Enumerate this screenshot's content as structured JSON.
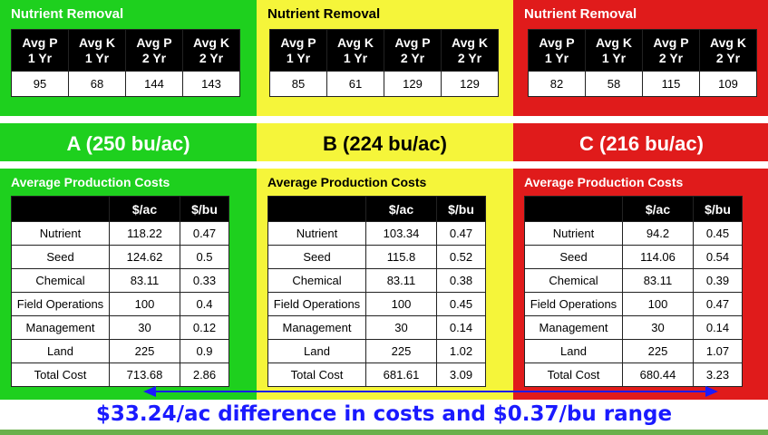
{
  "columns": [
    {
      "key": "a",
      "color": "#1ed01e",
      "nutrient_title": "Nutrient Removal",
      "nutrient_headers": [
        [
          "Avg P",
          "1 Yr"
        ],
        [
          "Avg K",
          "1 Yr"
        ],
        [
          "Avg P",
          "2 Yr"
        ],
        [
          "Avg K",
          "2 Yr"
        ]
      ],
      "nutrient_values": [
        "95",
        "68",
        "144",
        "143"
      ],
      "label": "A (250 bu/ac)",
      "cost_title": "Average Production Costs",
      "cost_headers": [
        "",
        "$/ac",
        "$/bu"
      ],
      "rows": [
        [
          "Nutrient",
          "118.22",
          "0.47"
        ],
        [
          "Seed",
          "124.62",
          "0.5"
        ],
        [
          "Chemical",
          "83.11",
          "0.33"
        ],
        [
          "Field Operations",
          "100",
          "0.4"
        ],
        [
          "Management",
          "30",
          "0.12"
        ],
        [
          "Land",
          "225",
          "0.9"
        ],
        [
          "Total Cost",
          "713.68",
          "2.86"
        ]
      ]
    },
    {
      "key": "b",
      "color": "#f5f53a",
      "nutrient_title": "Nutrient Removal",
      "nutrient_headers": [
        [
          "Avg P",
          "1 Yr"
        ],
        [
          "Avg K",
          "1 Yr"
        ],
        [
          "Avg P",
          "2 Yr"
        ],
        [
          "Avg K",
          "2 Yr"
        ]
      ],
      "nutrient_values": [
        "85",
        "61",
        "129",
        "129"
      ],
      "label": "B (224 bu/ac)",
      "cost_title": "Average Production Costs",
      "cost_headers": [
        "",
        "$/ac",
        "$/bu"
      ],
      "rows": [
        [
          "Nutrient",
          "103.34",
          "0.47"
        ],
        [
          "Seed",
          "115.8",
          "0.52"
        ],
        [
          "Chemical",
          "83.11",
          "0.38"
        ],
        [
          "Field Operations",
          "100",
          "0.45"
        ],
        [
          "Management",
          "30",
          "0.14"
        ],
        [
          "Land",
          "225",
          "1.02"
        ],
        [
          "Total Cost",
          "681.61",
          "3.09"
        ]
      ]
    },
    {
      "key": "c",
      "color": "#e01b1b",
      "nutrient_title": "Nutrient Removal",
      "nutrient_headers": [
        [
          "Avg P",
          "1 Yr"
        ],
        [
          "Avg K",
          "1 Yr"
        ],
        [
          "Avg P",
          "2 Yr"
        ],
        [
          "Avg K",
          "2 Yr"
        ]
      ],
      "nutrient_values": [
        "82",
        "58",
        "115",
        "109"
      ],
      "label": "C (216 bu/ac)",
      "cost_title": "Average Production Costs",
      "cost_headers": [
        "",
        "$/ac",
        "$/bu"
      ],
      "rows": [
        [
          "Nutrient",
          "94.2",
          "0.45"
        ],
        [
          "Seed",
          "114.06",
          "0.54"
        ],
        [
          "Chemical",
          "83.11",
          "0.39"
        ],
        [
          "Field Operations",
          "100",
          "0.47"
        ],
        [
          "Management",
          "30",
          "0.14"
        ],
        [
          "Land",
          "225",
          "1.07"
        ],
        [
          "Total Cost",
          "680.44",
          "3.23"
        ]
      ]
    }
  ],
  "footer": {
    "text": "$33.24/ac difference in costs and $0.37/bu range",
    "color": "#1a1aff",
    "arrow_color": "#1a1aff"
  }
}
